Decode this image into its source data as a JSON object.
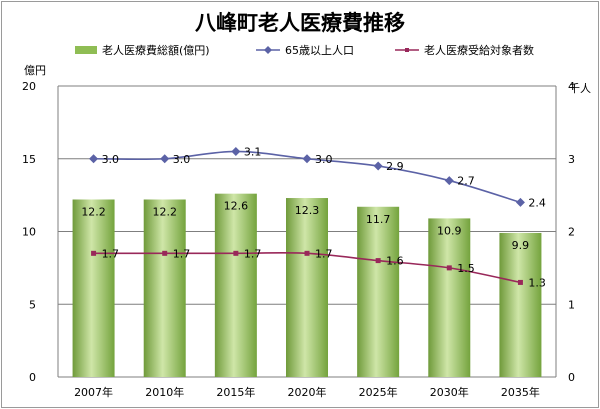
{
  "chart_data": {
    "type": "bar+line",
    "title": "八峰町老人医療費推移",
    "categories": [
      "2007年",
      "2010年",
      "2015年",
      "2020年",
      "2025年",
      "2030年",
      "2035年"
    ],
    "series": [
      {
        "name": "老人医療費総額(億円)",
        "kind": "bar",
        "axis": "left",
        "values": [
          12.2,
          12.2,
          12.6,
          12.3,
          11.7,
          10.9,
          9.9
        ],
        "color": "#8fbd54"
      },
      {
        "name": "65歳以上人口",
        "kind": "line",
        "axis": "right",
        "values": [
          3.0,
          3.0,
          3.1,
          3.0,
          2.9,
          2.7,
          2.4
        ],
        "color": "#5b62a6"
      },
      {
        "name": "老人医療受給対象者数",
        "kind": "line",
        "axis": "right",
        "values": [
          1.7,
          1.7,
          1.7,
          1.7,
          1.6,
          1.5,
          1.3
        ],
        "color": "#99285a"
      }
    ],
    "y_left": {
      "unit": "億円",
      "ylim": [
        0,
        20
      ],
      "ticks": [
        "0",
        "5",
        "10",
        "15",
        "20"
      ]
    },
    "y_right": {
      "unit": "千人",
      "ylim": [
        0,
        4
      ],
      "ticks": [
        "0",
        "1",
        "2",
        "3",
        "4"
      ]
    },
    "grid": true,
    "legend": "top"
  }
}
